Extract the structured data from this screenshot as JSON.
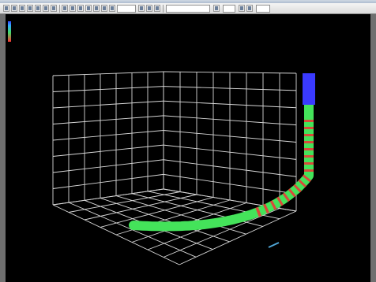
{
  "window": {
    "title": ""
  },
  "legend": {
    "title": "",
    "labels": [
      "",
      "",
      "",
      "",
      ""
    ],
    "colors": [
      "#3344ff",
      "#33aaff",
      "#44dd66",
      "#ff3333"
    ]
  },
  "axes": {
    "x_label": "",
    "y_label": "",
    "z_label": ""
  },
  "colors": {
    "background": "#000000",
    "grid": "#d8d8d8",
    "tube_green": "#44e35a",
    "tube_red": "#d94a3a",
    "tube_blue": "#3a3aff",
    "tube_cyan": "#4fa6d6"
  },
  "icons": [
    "toolbar-button-icon"
  ]
}
